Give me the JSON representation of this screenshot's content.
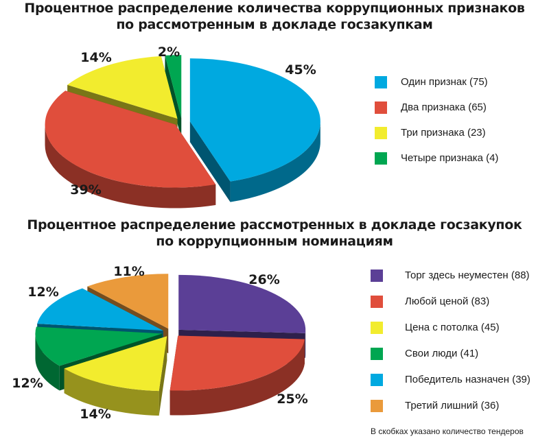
{
  "chart_data": [
    {
      "type": "pie",
      "title": [
        "Процентное распределение количества коррупционных признаков",
        "по рассмотренным в докладе госзакупкам"
      ],
      "slices": [
        {
          "label": "Один признак (75)",
          "value": 45,
          "percent_label": "45%",
          "count": 75,
          "color": "#00a9e0"
        },
        {
          "label": "Два признака (65)",
          "value": 39,
          "percent_label": "39%",
          "count": 65,
          "color": "#e04e3c"
        },
        {
          "label": "Три признака (23)",
          "value": 14,
          "percent_label": "14%",
          "count": 23,
          "color": "#f2ec2e"
        },
        {
          "label": "Четыре признака (4)",
          "value": 2,
          "percent_label": "2%",
          "count": 4,
          "color": "#00a651"
        }
      ],
      "legend_position": "right"
    },
    {
      "type": "pie",
      "title": [
        "Процентное распределение рассмотренных в докладе госзакупок",
        "по коррупционным номинациям"
      ],
      "slices": [
        {
          "label": "Торг здесь неуместен (88)",
          "value": 26,
          "percent_label": "26%",
          "count": 88,
          "color": "#5b3f96"
        },
        {
          "label": "Любой ценой (83)",
          "value": 25,
          "percent_label": "25%",
          "count": 83,
          "color": "#e04e3c"
        },
        {
          "label": "Цена с потолка (45)",
          "value": 14,
          "percent_label": "14%",
          "count": 45,
          "color": "#f2ec2e"
        },
        {
          "label": "Свои люди (41)",
          "value": 12,
          "percent_label": "12%",
          "count": 41,
          "color": "#00a651"
        },
        {
          "label": "Победитель назначен (39)",
          "value": 12,
          "percent_label": "12%",
          "count": 39,
          "color": "#00a9e0"
        },
        {
          "label": "Третий лишний (36)",
          "value": 11,
          "percent_label": "11%",
          "count": 36,
          "color": "#ea9a3b"
        }
      ],
      "legend_position": "right"
    }
  ],
  "footnote": "В скобках указано количество тендеров"
}
